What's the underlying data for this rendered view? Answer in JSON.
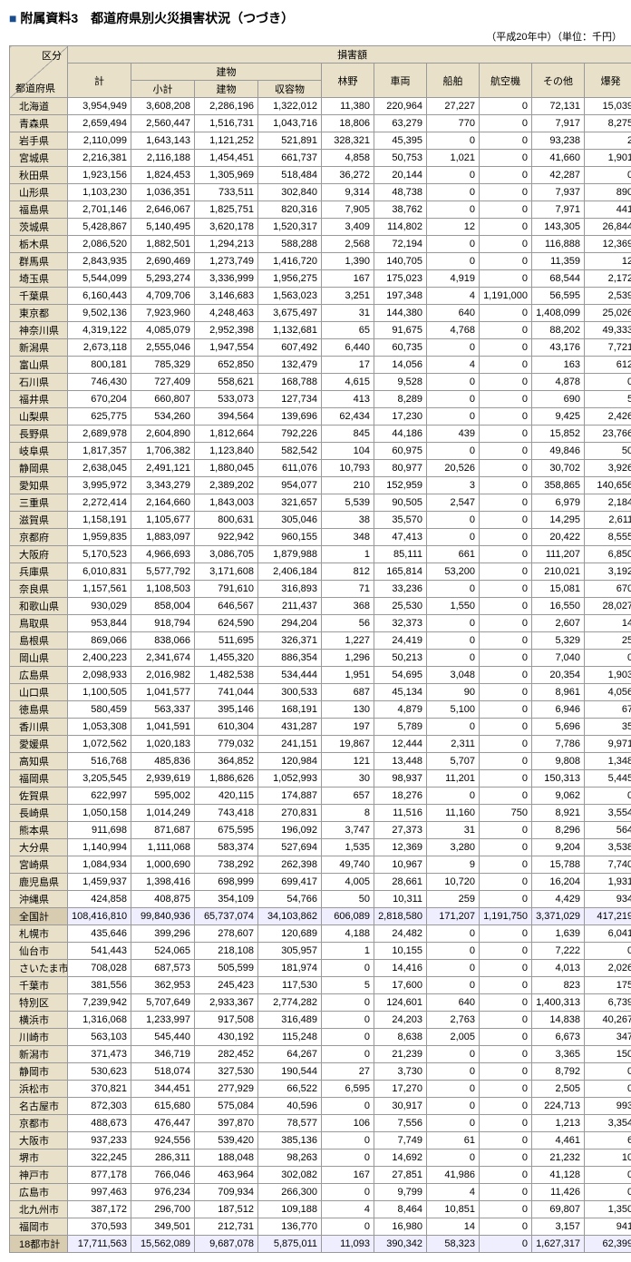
{
  "title": "附属資料3　都道府県別火災損害状況（つづき）",
  "unit_note": "（平成20年中）（単位：千円）",
  "header": {
    "corner_top": "区分",
    "corner_bottom": "都道府県",
    "group": "損害額",
    "sub_building": "建物",
    "cols": [
      "計",
      "小計",
      "建物",
      "収容物",
      "林野",
      "車両",
      "船舶",
      "航空機",
      "その他",
      "爆発"
    ]
  },
  "groups": [
    {
      "rows": [
        {
          "n": "北海道",
          "v": [
            "3,954,949",
            "3,608,208",
            "2,286,196",
            "1,322,012",
            "11,380",
            "220,964",
            "27,227",
            "0",
            "72,131",
            "15,039"
          ]
        },
        {
          "n": "青森県",
          "v": [
            "2,659,494",
            "2,560,447",
            "1,516,731",
            "1,043,716",
            "18,806",
            "63,279",
            "770",
            "0",
            "7,917",
            "8,275"
          ]
        },
        {
          "n": "岩手県",
          "v": [
            "2,110,099",
            "1,643,143",
            "1,121,252",
            "521,891",
            "328,321",
            "45,395",
            "0",
            "0",
            "93,238",
            "2"
          ]
        },
        {
          "n": "宮城県",
          "v": [
            "2,216,381",
            "2,116,188",
            "1,454,451",
            "661,737",
            "4,858",
            "50,753",
            "1,021",
            "0",
            "41,660",
            "1,901"
          ]
        },
        {
          "n": "秋田県",
          "v": [
            "1,923,156",
            "1,824,453",
            "1,305,969",
            "518,484",
            "36,272",
            "20,144",
            "0",
            "0",
            "42,287",
            "0"
          ]
        },
        {
          "n": "山形県",
          "v": [
            "1,103,230",
            "1,036,351",
            "733,511",
            "302,840",
            "9,314",
            "48,738",
            "0",
            "0",
            "7,937",
            "890"
          ]
        },
        {
          "n": "福島県",
          "v": [
            "2,701,146",
            "2,646,067",
            "1,825,751",
            "820,316",
            "7,905",
            "38,762",
            "0",
            "0",
            "7,971",
            "441"
          ]
        }
      ]
    },
    {
      "rows": [
        {
          "n": "茨城県",
          "v": [
            "5,428,867",
            "5,140,495",
            "3,620,178",
            "1,520,317",
            "3,409",
            "114,802",
            "12",
            "0",
            "143,305",
            "26,844"
          ]
        },
        {
          "n": "栃木県",
          "v": [
            "2,086,520",
            "1,882,501",
            "1,294,213",
            "588,288",
            "2,568",
            "72,194",
            "0",
            "0",
            "116,888",
            "12,369"
          ]
        },
        {
          "n": "群馬県",
          "v": [
            "2,843,935",
            "2,690,469",
            "1,273,749",
            "1,416,720",
            "1,390",
            "140,705",
            "0",
            "0",
            "11,359",
            "12"
          ]
        },
        {
          "n": "埼玉県",
          "v": [
            "5,544,099",
            "5,293,274",
            "3,336,999",
            "1,956,275",
            "167",
            "175,023",
            "4,919",
            "0",
            "68,544",
            "2,172"
          ]
        },
        {
          "n": "千葉県",
          "v": [
            "6,160,443",
            "4,709,706",
            "3,146,683",
            "1,563,023",
            "3,251",
            "197,348",
            "4",
            "1,191,000",
            "56,595",
            "2,539"
          ]
        },
        {
          "n": "東京都",
          "v": [
            "9,502,136",
            "7,923,960",
            "4,248,463",
            "3,675,497",
            "31",
            "144,380",
            "640",
            "0",
            "1,408,099",
            "25,026"
          ]
        },
        {
          "n": "神奈川県",
          "v": [
            "4,319,122",
            "4,085,079",
            "2,952,398",
            "1,132,681",
            "65",
            "91,675",
            "4,768",
            "0",
            "88,202",
            "49,333"
          ]
        }
      ]
    },
    {
      "rows": [
        {
          "n": "新潟県",
          "v": [
            "2,673,118",
            "2,555,046",
            "1,947,554",
            "607,492",
            "6,440",
            "60,735",
            "0",
            "0",
            "43,176",
            "7,721"
          ]
        },
        {
          "n": "富山県",
          "v": [
            "800,181",
            "785,329",
            "652,850",
            "132,479",
            "17",
            "14,056",
            "4",
            "0",
            "163",
            "612"
          ]
        },
        {
          "n": "石川県",
          "v": [
            "746,430",
            "727,409",
            "558,621",
            "168,788",
            "4,615",
            "9,528",
            "0",
            "0",
            "4,878",
            "0"
          ]
        },
        {
          "n": "福井県",
          "v": [
            "670,204",
            "660,807",
            "533,073",
            "127,734",
            "413",
            "8,289",
            "0",
            "0",
            "690",
            "5"
          ]
        }
      ]
    },
    {
      "rows": [
        {
          "n": "山梨県",
          "v": [
            "625,775",
            "534,260",
            "394,564",
            "139,696",
            "62,434",
            "17,230",
            "0",
            "0",
            "9,425",
            "2,426"
          ]
        },
        {
          "n": "長野県",
          "v": [
            "2,689,978",
            "2,604,890",
            "1,812,664",
            "792,226",
            "845",
            "44,186",
            "439",
            "0",
            "15,852",
            "23,766"
          ]
        },
        {
          "n": "岐阜県",
          "v": [
            "1,817,357",
            "1,706,382",
            "1,123,840",
            "582,542",
            "104",
            "60,975",
            "0",
            "0",
            "49,846",
            "50"
          ]
        },
        {
          "n": "静岡県",
          "v": [
            "2,638,045",
            "2,491,121",
            "1,880,045",
            "611,076",
            "10,793",
            "80,977",
            "20,526",
            "0",
            "30,702",
            "3,926"
          ]
        },
        {
          "n": "愛知県",
          "v": [
            "3,995,972",
            "3,343,279",
            "2,389,202",
            "954,077",
            "210",
            "152,959",
            "3",
            "0",
            "358,865",
            "140,656"
          ]
        },
        {
          "n": "三重県",
          "v": [
            "2,272,414",
            "2,164,660",
            "1,843,003",
            "321,657",
            "5,539",
            "90,505",
            "2,547",
            "0",
            "6,979",
            "2,184"
          ]
        }
      ]
    },
    {
      "rows": [
        {
          "n": "滋賀県",
          "v": [
            "1,158,191",
            "1,105,677",
            "800,631",
            "305,046",
            "38",
            "35,570",
            "0",
            "0",
            "14,295",
            "2,611"
          ]
        },
        {
          "n": "京都府",
          "v": [
            "1,959,835",
            "1,883,097",
            "922,942",
            "960,155",
            "348",
            "47,413",
            "0",
            "0",
            "20,422",
            "8,555"
          ]
        },
        {
          "n": "大阪府",
          "v": [
            "5,170,523",
            "4,966,693",
            "3,086,705",
            "1,879,988",
            "1",
            "85,111",
            "661",
            "0",
            "111,207",
            "6,850"
          ]
        },
        {
          "n": "兵庫県",
          "v": [
            "6,010,831",
            "5,577,792",
            "3,171,608",
            "2,406,184",
            "812",
            "165,814",
            "53,200",
            "0",
            "210,021",
            "3,192"
          ]
        },
        {
          "n": "奈良県",
          "v": [
            "1,157,561",
            "1,108,503",
            "791,610",
            "316,893",
            "71",
            "33,236",
            "0",
            "0",
            "15,081",
            "670"
          ]
        },
        {
          "n": "和歌山県",
          "v": [
            "930,029",
            "858,004",
            "646,567",
            "211,437",
            "368",
            "25,530",
            "1,550",
            "0",
            "16,550",
            "28,027"
          ]
        }
      ]
    },
    {
      "rows": [
        {
          "n": "鳥取県",
          "v": [
            "953,844",
            "918,794",
            "624,590",
            "294,204",
            "56",
            "32,373",
            "0",
            "0",
            "2,607",
            "14"
          ]
        },
        {
          "n": "島根県",
          "v": [
            "869,066",
            "838,066",
            "511,695",
            "326,371",
            "1,227",
            "24,419",
            "0",
            "0",
            "5,329",
            "25"
          ]
        },
        {
          "n": "岡山県",
          "v": [
            "2,400,223",
            "2,341,674",
            "1,455,320",
            "886,354",
            "1,296",
            "50,213",
            "0",
            "0",
            "7,040",
            "0"
          ]
        },
        {
          "n": "広島県",
          "v": [
            "2,098,933",
            "2,016,982",
            "1,482,538",
            "534,444",
            "1,951",
            "54,695",
            "3,048",
            "0",
            "20,354",
            "1,903"
          ]
        },
        {
          "n": "山口県",
          "v": [
            "1,100,505",
            "1,041,577",
            "741,044",
            "300,533",
            "687",
            "45,134",
            "90",
            "0",
            "8,961",
            "4,056"
          ]
        }
      ]
    },
    {
      "rows": [
        {
          "n": "徳島県",
          "v": [
            "580,459",
            "563,337",
            "395,146",
            "168,191",
            "130",
            "4,879",
            "5,100",
            "0",
            "6,946",
            "67"
          ]
        },
        {
          "n": "香川県",
          "v": [
            "1,053,308",
            "1,041,591",
            "610,304",
            "431,287",
            "197",
            "5,789",
            "0",
            "0",
            "5,696",
            "35"
          ]
        },
        {
          "n": "愛媛県",
          "v": [
            "1,072,562",
            "1,020,183",
            "779,032",
            "241,151",
            "19,867",
            "12,444",
            "2,311",
            "0",
            "7,786",
            "9,971"
          ]
        },
        {
          "n": "高知県",
          "v": [
            "516,768",
            "485,836",
            "364,852",
            "120,984",
            "121",
            "13,448",
            "5,707",
            "0",
            "9,808",
            "1,348"
          ]
        }
      ]
    },
    {
      "rows": [
        {
          "n": "福岡県",
          "v": [
            "3,205,545",
            "2,939,619",
            "1,886,626",
            "1,052,993",
            "30",
            "98,937",
            "11,201",
            "0",
            "150,313",
            "5,445"
          ]
        },
        {
          "n": "佐賀県",
          "v": [
            "622,997",
            "595,002",
            "420,115",
            "174,887",
            "657",
            "18,276",
            "0",
            "0",
            "9,062",
            "0"
          ]
        },
        {
          "n": "長崎県",
          "v": [
            "1,050,158",
            "1,014,249",
            "743,418",
            "270,831",
            "8",
            "11,516",
            "11,160",
            "750",
            "8,921",
            "3,554"
          ]
        },
        {
          "n": "熊本県",
          "v": [
            "911,698",
            "871,687",
            "675,595",
            "196,092",
            "3,747",
            "27,373",
            "31",
            "0",
            "8,296",
            "564"
          ]
        },
        {
          "n": "大分県",
          "v": [
            "1,140,994",
            "1,111,068",
            "583,374",
            "527,694",
            "1,535",
            "12,369",
            "3,280",
            "0",
            "9,204",
            "3,538"
          ]
        },
        {
          "n": "宮崎県",
          "v": [
            "1,084,934",
            "1,000,690",
            "738,292",
            "262,398",
            "49,740",
            "10,967",
            "9",
            "0",
            "15,788",
            "7,740"
          ]
        },
        {
          "n": "鹿児島県",
          "v": [
            "1,459,937",
            "1,398,416",
            "698,999",
            "699,417",
            "4,005",
            "28,661",
            "10,720",
            "0",
            "16,204",
            "1,931"
          ]
        },
        {
          "n": "沖縄県",
          "v": [
            "424,858",
            "408,875",
            "354,109",
            "54,766",
            "50",
            "10,311",
            "259",
            "0",
            "4,429",
            "934"
          ]
        }
      ]
    },
    {
      "total": true,
      "rows": [
        {
          "n": "全国計",
          "v": [
            "108,416,810",
            "99,840,936",
            "65,737,074",
            "34,103,862",
            "606,089",
            "2,818,580",
            "171,207",
            "1,191,750",
            "3,371,029",
            "417,219"
          ]
        }
      ]
    },
    {
      "rows": [
        {
          "n": "札幌市",
          "v": [
            "435,646",
            "399,296",
            "278,607",
            "120,689",
            "4,188",
            "24,482",
            "0",
            "0",
            "1,639",
            "6,041"
          ]
        },
        {
          "n": "仙台市",
          "v": [
            "541,443",
            "524,065",
            "218,108",
            "305,957",
            "1",
            "10,155",
            "0",
            "0",
            "7,222",
            "0"
          ]
        },
        {
          "n": "さいたま市",
          "v": [
            "708,028",
            "687,573",
            "505,599",
            "181,974",
            "0",
            "14,416",
            "0",
            "0",
            "4,013",
            "2,026"
          ]
        },
        {
          "n": "千葉市",
          "v": [
            "381,556",
            "362,953",
            "245,423",
            "117,530",
            "5",
            "17,600",
            "0",
            "0",
            "823",
            "175"
          ]
        },
        {
          "n": "特別区",
          "v": [
            "7,239,942",
            "5,707,649",
            "2,933,367",
            "2,774,282",
            "0",
            "124,601",
            "640",
            "0",
            "1,400,313",
            "6,739"
          ]
        },
        {
          "n": "横浜市",
          "v": [
            "1,316,068",
            "1,233,997",
            "917,508",
            "316,489",
            "0",
            "24,203",
            "2,763",
            "0",
            "14,838",
            "40,267"
          ]
        },
        {
          "n": "川崎市",
          "v": [
            "563,103",
            "545,440",
            "430,192",
            "115,248",
            "0",
            "8,638",
            "2,005",
            "0",
            "6,673",
            "347"
          ]
        },
        {
          "n": "新潟市",
          "v": [
            "371,473",
            "346,719",
            "282,452",
            "64,267",
            "0",
            "21,239",
            "0",
            "0",
            "3,365",
            "150"
          ]
        },
        {
          "n": "静岡市",
          "v": [
            "530,623",
            "518,074",
            "327,530",
            "190,544",
            "27",
            "3,730",
            "0",
            "0",
            "8,792",
            "0"
          ]
        },
        {
          "n": "浜松市",
          "v": [
            "370,821",
            "344,451",
            "277,929",
            "66,522",
            "6,595",
            "17,270",
            "0",
            "0",
            "2,505",
            "0"
          ]
        },
        {
          "n": "名古屋市",
          "v": [
            "872,303",
            "615,680",
            "575,084",
            "40,596",
            "0",
            "30,917",
            "0",
            "0",
            "224,713",
            "993"
          ]
        },
        {
          "n": "京都市",
          "v": [
            "488,673",
            "476,447",
            "397,870",
            "78,577",
            "106",
            "7,556",
            "0",
            "0",
            "1,213",
            "3,354"
          ]
        },
        {
          "n": "大阪市",
          "v": [
            "937,233",
            "924,556",
            "539,420",
            "385,136",
            "0",
            "7,749",
            "61",
            "0",
            "4,461",
            "6"
          ]
        },
        {
          "n": "堺市",
          "v": [
            "322,245",
            "286,311",
            "188,048",
            "98,263",
            "0",
            "14,692",
            "0",
            "0",
            "21,232",
            "10"
          ]
        },
        {
          "n": "神戸市",
          "v": [
            "877,178",
            "766,046",
            "463,964",
            "302,082",
            "167",
            "27,851",
            "41,986",
            "0",
            "41,128",
            "0"
          ]
        },
        {
          "n": "広島市",
          "v": [
            "997,463",
            "976,234",
            "709,934",
            "266,300",
            "0",
            "9,799",
            "4",
            "0",
            "11,426",
            "0"
          ]
        },
        {
          "n": "北九州市",
          "v": [
            "387,172",
            "296,700",
            "187,512",
            "109,188",
            "4",
            "8,464",
            "10,851",
            "0",
            "69,807",
            "1,350"
          ]
        },
        {
          "n": "福岡市",
          "v": [
            "370,593",
            "349,501",
            "212,731",
            "136,770",
            "0",
            "16,980",
            "14",
            "0",
            "3,157",
            "941"
          ]
        }
      ]
    },
    {
      "total": true,
      "rows": [
        {
          "n": "18都市計",
          "v": [
            "17,711,563",
            "15,562,089",
            "9,687,078",
            "5,875,011",
            "11,093",
            "390,342",
            "58,323",
            "0",
            "1,627,317",
            "62,399"
          ]
        }
      ]
    }
  ]
}
